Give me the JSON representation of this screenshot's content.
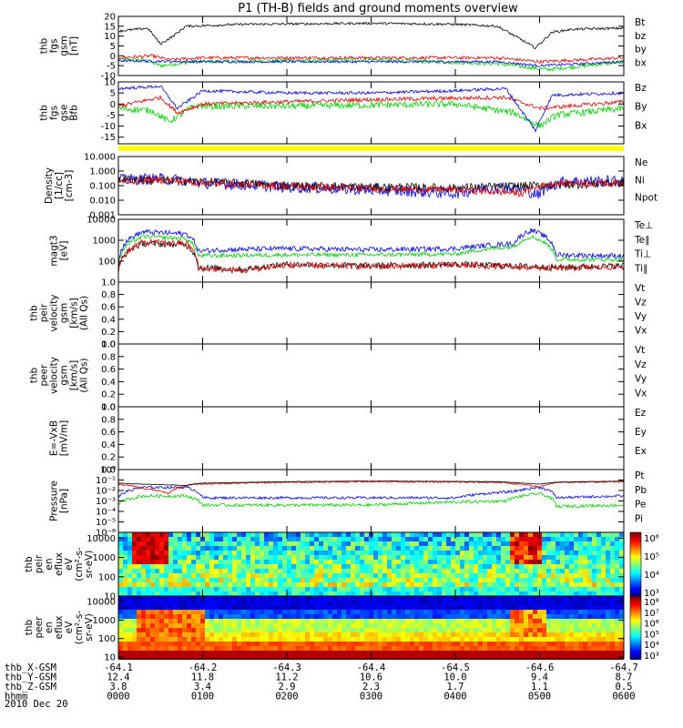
{
  "title": "P1 (TH-B) fields and ground moments overview",
  "date": "2010 Dec 20",
  "ephemeris": {
    "rows": [
      {
        "label": "thb_X-GSM",
        "values": [
          "-64.1",
          "-64.2",
          "-64.3",
          "-64.4",
          "-64.5",
          "-64.6",
          "-64.7"
        ]
      },
      {
        "label": "thb_Y-GSM",
        "values": [
          "12.4",
          "11.8",
          "11.2",
          "10.6",
          "10.0",
          "9.4",
          "8.7"
        ]
      },
      {
        "label": "thb_Z-GSM",
        "values": [
          "3.8",
          "3.4",
          "2.9",
          "2.3",
          "1.7",
          "1.1",
          "0.5"
        ]
      },
      {
        "label": "hhmm",
        "values": [
          "0000",
          "0100",
          "0200",
          "0300",
          "0400",
          "0500",
          "0600"
        ]
      }
    ]
  },
  "colors": {
    "black": "#000000",
    "red": "#e00000",
    "green": "#00d000",
    "blue": "#0000e0",
    "yellow": "#ffff00"
  },
  "panels": [
    {
      "id": "fgs-gsm",
      "ylabel": [
        "thb",
        "fgs",
        "gsm",
        "[nT]"
      ],
      "scale": "linear",
      "ylim": [
        -10,
        20
      ],
      "ticks": [
        "20",
        "15",
        "10",
        "5",
        "0",
        "-5",
        "-10"
      ],
      "tick_values": [
        20,
        15,
        10,
        5,
        0,
        -5,
        -10
      ],
      "legend": [
        {
          "label": "Bt",
          "color": "#000000"
        },
        {
          "label": "bz",
          "color": "#e00000"
        },
        {
          "label": "by",
          "color": "#00d000"
        },
        {
          "label": "bx",
          "color": "#0000e0"
        }
      ]
    },
    {
      "id": "fgs-gse",
      "ylabel": [
        "thb",
        "fgs",
        "gse",
        "Bfb"
      ],
      "scale": "linear",
      "ylim": [
        -18,
        10
      ],
      "ticks": [
        "10",
        "5",
        "0",
        "-5",
        "-10",
        "-15"
      ],
      "tick_values": [
        10,
        5,
        0,
        -5,
        -10,
        -15
      ],
      "legend": [
        {
          "label": "Bz",
          "color": "#e00000"
        },
        {
          "label": "By",
          "color": "#00d000"
        },
        {
          "label": "Bx",
          "color": "#0000e0"
        }
      ]
    },
    {
      "id": "density",
      "ylabel": [
        "Density",
        "[1/cc]",
        "[cm-3]"
      ],
      "scale": "log",
      "ylim": [
        0.001,
        10
      ],
      "ticks": [
        "10.000",
        "1.000",
        "0.100",
        "0.010",
        "0.001"
      ],
      "tick_values": [
        10,
        1,
        0.1,
        0.01,
        0.001
      ],
      "legend": [
        {
          "label": "Ne",
          "color": "#e00000"
        },
        {
          "label": "Ni",
          "color": "#000000"
        },
        {
          "label": "Npot",
          "color": "#0000e0"
        }
      ]
    },
    {
      "id": "temperature",
      "ylabel": [
        "magt3",
        "[eV]"
      ],
      "scale": "log",
      "ylim": [
        10,
        10000
      ],
      "ticks": [
        "10000",
        "1000",
        "100"
      ],
      "tick_values": [
        10000,
        1000,
        100
      ],
      "legend": [
        {
          "label": "Te⊥",
          "color": "#e00000"
        },
        {
          "label": "Te∥",
          "color": "#000000"
        },
        {
          "label": "Ti⊥",
          "color": "#e00000"
        },
        {
          "label": "Ti∥",
          "color": "#00d000"
        }
      ]
    },
    {
      "id": "peir-velocity",
      "ylabel": [
        "thb",
        "peir",
        "velocity",
        "gsm",
        "[km/s]",
        "(All Qs)"
      ],
      "scale": "linear",
      "ylim": [
        0,
        1
      ],
      "ticks": [
        "1.0",
        "0.8",
        "0.6",
        "0.4",
        "0.2",
        "0.0"
      ],
      "tick_values": [
        1,
        0.8,
        0.6,
        0.4,
        0.2,
        0
      ],
      "legend": [
        {
          "label": "Vt",
          "color": "#000000"
        },
        {
          "label": "Vz",
          "color": "#e00000"
        },
        {
          "label": "Vy",
          "color": "#00d000"
        },
        {
          "label": "Vx",
          "color": "#0000e0"
        }
      ]
    },
    {
      "id": "peer-velocity",
      "ylabel": [
        "thb",
        "peer",
        "velocity",
        "gsm",
        "[km/s]",
        "(All Qs)"
      ],
      "scale": "linear",
      "ylim": [
        0,
        1
      ],
      "ticks": [
        "1.0",
        "0.8",
        "0.6",
        "0.4",
        "0.2",
        "0.0"
      ],
      "tick_values": [
        1,
        0.8,
        0.6,
        0.4,
        0.2,
        0
      ],
      "legend": [
        {
          "label": "Vt",
          "color": "#000000"
        },
        {
          "label": "Vz",
          "color": "#e00000"
        },
        {
          "label": "Vy",
          "color": "#00d000"
        },
        {
          "label": "Vx",
          "color": "#0000e0"
        }
      ]
    },
    {
      "id": "efield",
      "ylabel": [
        "E=-VxB",
        "[mV/m]"
      ],
      "scale": "linear",
      "ylim": [
        0,
        1
      ],
      "ticks": [
        "1.0",
        "0.8",
        "0.6",
        "0.4",
        "0.2",
        "0.0"
      ],
      "tick_values": [
        1,
        0.8,
        0.6,
        0.4,
        0.2,
        0
      ],
      "legend": [
        {
          "label": "Ez",
          "color": "#e00000"
        },
        {
          "label": "Ey",
          "color": "#00d000"
        },
        {
          "label": "Ex",
          "color": "#0000e0"
        }
      ]
    },
    {
      "id": "pressure",
      "ylabel": [
        "Pressure",
        "[nPa]"
      ],
      "scale": "log",
      "ylim": [
        1e-06,
        1
      ],
      "ticks": [
        "10⁰",
        "10⁻¹",
        "10⁻²",
        "10⁻³",
        "10⁻⁴",
        "10⁻⁵",
        "10⁻⁶"
      ],
      "tick_values": [
        1,
        0.1,
        0.01,
        0.001,
        0.0001,
        1e-05,
        1e-06
      ],
      "legend": [
        {
          "label": "Pt",
          "color": "#000000"
        },
        {
          "label": "Pb",
          "color": "#e00000"
        },
        {
          "label": "Pe",
          "color": "#00d000"
        },
        {
          "label": "Pi",
          "color": "#0000e0"
        }
      ]
    },
    {
      "id": "peir-spec",
      "ylabel": [
        "thb",
        "peir",
        "en",
        "eflux",
        "eV",
        "(cm²-s-",
        "sr-eV)"
      ],
      "scale": "log",
      "ylim": [
        10,
        20000
      ],
      "ticks": [
        "10000",
        "1000",
        "100",
        "10"
      ],
      "tick_values": [
        10000,
        1000,
        100,
        10
      ],
      "colorbar": [
        "10⁶",
        "10⁵",
        "10⁴",
        "10³"
      ]
    },
    {
      "id": "peer-spec",
      "ylabel": [
        "thb",
        "peer",
        "en",
        "eflux",
        "eV",
        "(cm²-s-",
        "sr-eV)"
      ],
      "scale": "log",
      "ylim": [
        8,
        20000
      ],
      "ticks": [
        "10000",
        "1000",
        "100",
        "10"
      ],
      "tick_values": [
        10000,
        1000,
        100,
        10
      ],
      "colorbar": [
        "10⁸",
        "10⁷",
        "10⁶",
        "10⁵",
        "10⁴",
        "10³"
      ]
    }
  ],
  "chart_data": {
    "type": "line",
    "title": "P1 (TH-B) fields and ground moments overview",
    "x_axis": {
      "label": "hhmm",
      "ticks": [
        "0000",
        "0100",
        "0200",
        "0300",
        "0400",
        "0500",
        "0600"
      ],
      "range_hours": [
        0,
        6
      ]
    },
    "series_summary": [
      {
        "panel": "fgs-gsm",
        "name": "Bt",
        "x_hours": [
          0,
          0.4,
          0.55,
          0.8,
          1.5,
          3,
          4.5,
          4.9,
          5.05,
          5.3,
          6
        ],
        "values": [
          13,
          14,
          8,
          15,
          16,
          16,
          15,
          10,
          3,
          13,
          14
        ]
      },
      {
        "panel": "fgs-gsm",
        "name": "bx",
        "x_hours": [
          0,
          0.4,
          0.6,
          1,
          3,
          4.6,
          5,
          6
        ],
        "values": [
          -2,
          -3,
          -4,
          -3,
          -2,
          -4,
          -6,
          -3
        ]
      },
      {
        "panel": "density",
        "name": "Ni",
        "x_hours": [
          0,
          1,
          2,
          3,
          4,
          5,
          6
        ],
        "values": [
          0.2,
          0.15,
          0.1,
          0.07,
          0.06,
          0.1,
          0.15
        ]
      },
      {
        "panel": "temperature",
        "name": "Ti∥",
        "x_hours": [
          0,
          0.3,
          0.8,
          1,
          3,
          4.8,
          5.2,
          6
        ],
        "values": [
          60,
          2000,
          1500,
          200,
          250,
          600,
          120,
          120
        ]
      },
      {
        "panel": "pressure",
        "name": "Pt",
        "x_hours": [
          0,
          1,
          3,
          5,
          6
        ],
        "values": [
          0.03,
          0.06,
          0.08,
          0.05,
          0.08
        ]
      }
    ]
  }
}
